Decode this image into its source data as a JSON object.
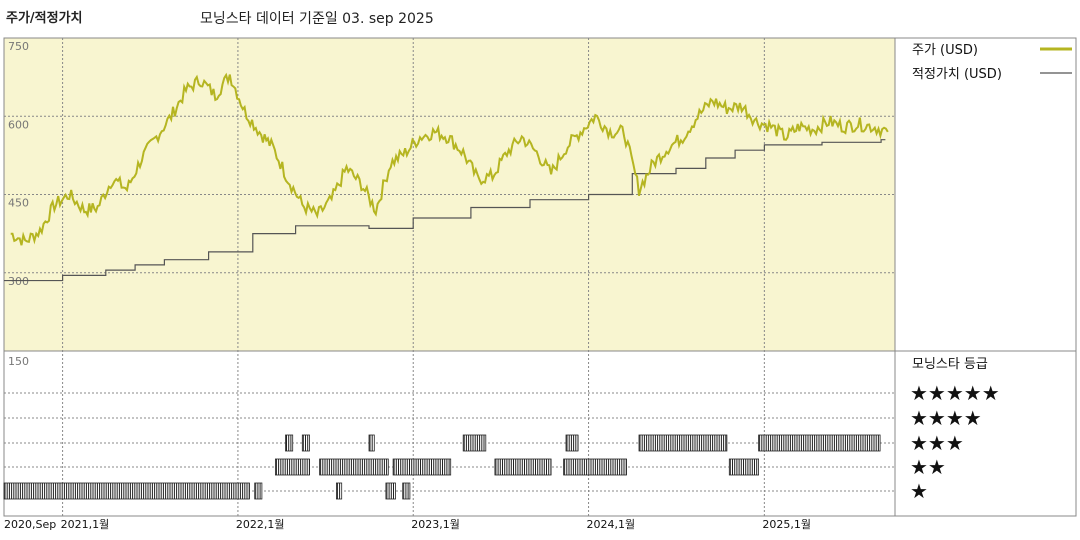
{
  "header": {
    "left_title": "주가/적정가치",
    "center_title": "모닝스타 데이터 기준일 03. sep 2025"
  },
  "legend": {
    "price_label": "주가 (USD)",
    "fair_label": "적정가치 (USD)",
    "rating_title": "모닝스타 등급"
  },
  "colors": {
    "price": "#b5b521",
    "fair": "#555555",
    "upper_bg": "#f8f5d0",
    "rating_bar": "#222222"
  },
  "chart_data": [
    {
      "type": "line",
      "x_range": [
        "2020-09",
        "2025-09"
      ],
      "ylim": [
        150,
        750
      ],
      "yticks": [
        750,
        600,
        450,
        300
      ],
      "xticks": [
        "2020,Sep",
        "2021,1월",
        "2022,1월",
        "2023,1월",
        "2024,1월",
        "2025,1월"
      ],
      "series": [
        {
          "name": "주가 (USD)",
          "points": [
            [
              "2020-09",
              375
            ],
            [
              "2020-10",
              360
            ],
            [
              "2020-11",
              380
            ],
            [
              "2020-12",
              430
            ],
            [
              "2021-01",
              450
            ],
            [
              "2021-02",
              420
            ],
            [
              "2021-03",
              425
            ],
            [
              "2021-04",
              480
            ],
            [
              "2021-05",
              460
            ],
            [
              "2021-06",
              520
            ],
            [
              "2021-07",
              560
            ],
            [
              "2021-08",
              600
            ],
            [
              "2021-09",
              650
            ],
            [
              "2021-10",
              670
            ],
            [
              "2021-11",
              640
            ],
            [
              "2021-12",
              680
            ],
            [
              "2022-01",
              610
            ],
            [
              "2022-02",
              570
            ],
            [
              "2022-03",
              540
            ],
            [
              "2022-04",
              480
            ],
            [
              "2022-05",
              430
            ],
            [
              "2022-06",
              410
            ],
            [
              "2022-07",
              440
            ],
            [
              "2022-08",
              500
            ],
            [
              "2022-09",
              470
            ],
            [
              "2022-10",
              420
            ],
            [
              "2022-11",
              510
            ],
            [
              "2022-12",
              530
            ],
            [
              "2023-01",
              560
            ],
            [
              "2023-02",
              570
            ],
            [
              "2023-03",
              560
            ],
            [
              "2023-04",
              530
            ],
            [
              "2023-05",
              480
            ],
            [
              "2023-06",
              485
            ],
            [
              "2023-07",
              530
            ],
            [
              "2023-08",
              560
            ],
            [
              "2023-09",
              530
            ],
            [
              "2023-10",
              490
            ],
            [
              "2023-11",
              540
            ],
            [
              "2023-12",
              570
            ],
            [
              "2024-01",
              600
            ],
            [
              "2024-02",
              570
            ],
            [
              "2024-03",
              570
            ],
            [
              "2024-04",
              460
            ],
            [
              "2024-05",
              510
            ],
            [
              "2024-06",
              540
            ],
            [
              "2024-07",
              560
            ],
            [
              "2024-08",
              600
            ],
            [
              "2024-09",
              630
            ],
            [
              "2024-10",
              615
            ],
            [
              "2024-11",
              620
            ],
            [
              "2024-12",
              590
            ],
            [
              "2025-01",
              580
            ],
            [
              "2025-02",
              560
            ],
            [
              "2025-03",
              580
            ],
            [
              "2025-04",
              575
            ],
            [
              "2025-05",
              590
            ],
            [
              "2025-06",
              580
            ],
            [
              "2025-07",
              585
            ],
            [
              "2025-08",
              580
            ],
            [
              "2025-09",
              570
            ]
          ]
        },
        {
          "name": "적정가치 (USD)",
          "steps": [
            [
              "2020-09",
              285
            ],
            [
              "2021-01",
              295
            ],
            [
              "2021-04",
              305
            ],
            [
              "2021-06",
              315
            ],
            [
              "2021-08",
              325
            ],
            [
              "2021-11",
              340
            ],
            [
              "2022-02",
              375
            ],
            [
              "2022-05",
              390
            ],
            [
              "2022-10",
              385
            ],
            [
              "2023-01",
              405
            ],
            [
              "2023-05",
              425
            ],
            [
              "2023-09",
              440
            ],
            [
              "2024-01",
              450
            ],
            [
              "2024-04",
              490
            ],
            [
              "2024-07",
              500
            ],
            [
              "2024-09",
              520
            ],
            [
              "2024-11",
              535
            ],
            [
              "2025-01",
              545
            ],
            [
              "2025-05",
              550
            ],
            [
              "2025-09",
              555
            ]
          ]
        }
      ]
    },
    {
      "type": "rating_timeline",
      "rows": [
        "★★★★★",
        "★★★★",
        "★★★",
        "★★",
        "★"
      ],
      "bands": {
        "3": [
          [
            "2022-04-10",
            "2022-04-25"
          ],
          [
            "2022-05-15",
            "2022-05-30"
          ],
          [
            "2022-10-01",
            "2022-10-12"
          ],
          [
            "2023-04-15",
            "2023-06-01"
          ],
          [
            "2023-11-15",
            "2023-12-10"
          ],
          [
            "2024-04-15",
            "2024-10-15"
          ],
          [
            "2024-12-20",
            "2025-08-30"
          ]
        ],
        "4": [
          [
            "2022-03-20",
            "2022-05-30"
          ],
          [
            "2022-06-20",
            "2022-11-10"
          ],
          [
            "2022-11-20",
            "2023-03-20"
          ],
          [
            "2023-06-20",
            "2023-10-15"
          ],
          [
            "2023-11-10",
            "2024-03-20"
          ],
          [
            "2024-10-20",
            "2024-12-20"
          ]
        ],
        "5": [
          [
            "2020-09-01",
            "2022-01-25"
          ],
          [
            "2022-02-05",
            "2022-02-20"
          ],
          [
            "2022-07-25",
            "2022-08-05"
          ],
          [
            "2022-11-05",
            "2022-11-25"
          ],
          [
            "2022-12-10",
            "2022-12-25"
          ]
        ]
      }
    }
  ]
}
